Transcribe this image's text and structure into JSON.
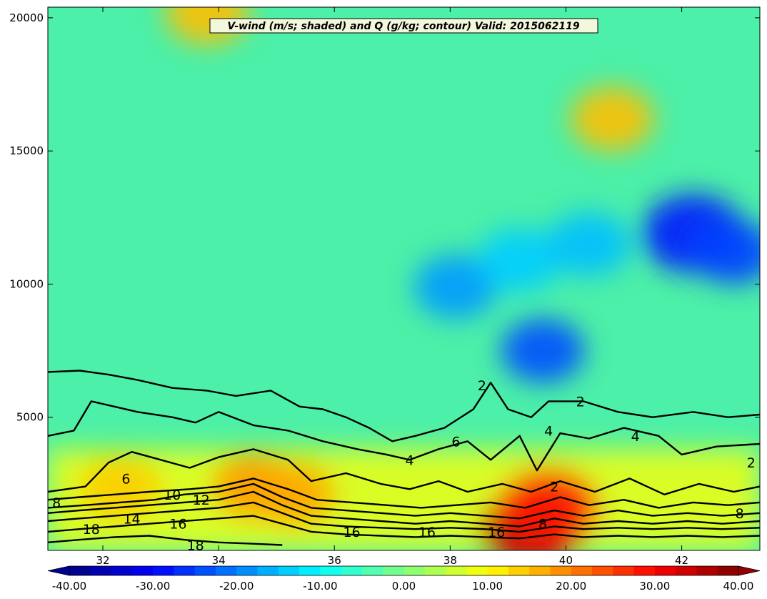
{
  "chart_data": {
    "type": "heatmap",
    "title": "V-wind (m/s; shaded) and Q (g/kg; contour) Valid: 2015062119",
    "xlabel": "",
    "ylabel": "",
    "xlim": [
      31.05,
      43.35
    ],
    "ylim": [
      0,
      20400
    ],
    "x_ticks": [
      32,
      34,
      36,
      38,
      40,
      42
    ],
    "x_tick_labels": [
      "32",
      "34",
      "36",
      "38",
      "40",
      "42"
    ],
    "y_ticks": [
      5000,
      10000,
      15000,
      20000
    ],
    "y_tick_labels": [
      "5000",
      "10000",
      "15000",
      "20000"
    ],
    "shaded_field": {
      "name": "V-wind",
      "units": "m/s",
      "levels_min": -40.0,
      "levels_max": 40.0,
      "levels_step": 2.5,
      "colormap": "jet",
      "colorbar_ticks": [
        -40,
        -30,
        -20,
        -10,
        0,
        10,
        20,
        30,
        40
      ],
      "colorbar_tick_labels": [
        "-40.00",
        "-30.00",
        "-20.00",
        "-10.00",
        "0.00",
        "10.00",
        "20.00",
        "30.00",
        "40.00"
      ],
      "features": [
        {
          "x": 32.3,
          "y": 2300,
          "value": 14
        },
        {
          "x": 34.6,
          "y": 2400,
          "value": 18
        },
        {
          "x": 35.3,
          "y": 2100,
          "value": 17
        },
        {
          "x": 39.4,
          "y": 800,
          "value": 35
        },
        {
          "x": 39.7,
          "y": 1600,
          "value": 28
        },
        {
          "x": 38.1,
          "y": 9900,
          "value": -18
        },
        {
          "x": 39.2,
          "y": 10900,
          "value": -14
        },
        {
          "x": 39.6,
          "y": 7500,
          "value": -24
        },
        {
          "x": 40.4,
          "y": 11500,
          "value": -15
        },
        {
          "x": 42.2,
          "y": 11900,
          "value": -28
        },
        {
          "x": 42.9,
          "y": 11200,
          "value": -25
        },
        {
          "x": 40.8,
          "y": 16200,
          "value": 15
        },
        {
          "x": 33.8,
          "y": 20200,
          "value": 15
        }
      ]
    },
    "contour_field": {
      "name": "Q",
      "units": "g/kg",
      "levels": [
        2,
        4,
        6,
        8,
        10,
        12,
        14,
        16,
        18
      ],
      "labels": [
        {
          "text": "2",
          "x": 38.55,
          "y": 6200
        },
        {
          "text": "2",
          "x": 40.25,
          "y": 5600
        },
        {
          "text": "2",
          "x": 39.8,
          "y": 2400
        },
        {
          "text": "2",
          "x": 43.2,
          "y": 3300
        },
        {
          "text": "4",
          "x": 37.3,
          "y": 3400
        },
        {
          "text": "4",
          "x": 39.7,
          "y": 4500
        },
        {
          "text": "4",
          "x": 41.2,
          "y": 4300
        },
        {
          "text": "6",
          "x": 32.4,
          "y": 2700
        },
        {
          "text": "6",
          "x": 38.1,
          "y": 4100
        },
        {
          "text": "8",
          "x": 31.2,
          "y": 1800
        },
        {
          "text": "8",
          "x": 39.6,
          "y": 1000
        },
        {
          "text": "8",
          "x": 43.0,
          "y": 1400
        },
        {
          "text": "10",
          "x": 33.2,
          "y": 2100
        },
        {
          "text": "12",
          "x": 33.7,
          "y": 1900
        },
        {
          "text": "14",
          "x": 32.5,
          "y": 1200
        },
        {
          "text": "16",
          "x": 33.3,
          "y": 1000
        },
        {
          "text": "16",
          "x": 36.3,
          "y": 700
        },
        {
          "text": "16",
          "x": 37.6,
          "y": 700
        },
        {
          "text": "16",
          "x": 38.8,
          "y": 700
        },
        {
          "text": "18",
          "x": 31.8,
          "y": 800
        },
        {
          "text": "18",
          "x": 33.6,
          "y": 200
        }
      ],
      "lines": [
        {
          "level": 2,
          "points": [
            [
              31.05,
              6700
            ],
            [
              31.6,
              6750
            ],
            [
              32.1,
              6600
            ],
            [
              32.6,
              6400
            ],
            [
              33.2,
              6100
            ],
            [
              33.8,
              6000
            ],
            [
              34.3,
              5800
            ],
            [
              34.9,
              6000
            ],
            [
              35.4,
              5400
            ],
            [
              35.8,
              5300
            ],
            [
              36.2,
              5000
            ],
            [
              36.6,
              4600
            ],
            [
              37.0,
              4100
            ],
            [
              37.4,
              4300
            ],
            [
              37.9,
              4600
            ],
            [
              38.4,
              5300
            ],
            [
              38.7,
              6300
            ],
            [
              39.0,
              5300
            ],
            [
              39.4,
              5000
            ],
            [
              39.7,
              5600
            ],
            [
              40.3,
              5600
            ],
            [
              40.9,
              5200
            ],
            [
              41.5,
              5000
            ],
            [
              42.2,
              5200
            ],
            [
              42.8,
              5000
            ],
            [
              43.35,
              5100
            ]
          ]
        },
        {
          "level": 4,
          "points": [
            [
              31.05,
              4300
            ],
            [
              31.5,
              4500
            ],
            [
              31.8,
              5600
            ],
            [
              32.2,
              5400
            ],
            [
              32.6,
              5200
            ],
            [
              33.2,
              5000
            ],
            [
              33.6,
              4800
            ],
            [
              34.0,
              5200
            ],
            [
              34.6,
              4700
            ],
            [
              35.2,
              4500
            ],
            [
              35.8,
              4100
            ],
            [
              36.4,
              3800
            ],
            [
              36.9,
              3600
            ],
            [
              37.3,
              3400
            ],
            [
              37.8,
              3800
            ],
            [
              38.3,
              4100
            ],
            [
              38.7,
              3400
            ],
            [
              39.2,
              4300
            ],
            [
              39.5,
              3000
            ],
            [
              39.9,
              4400
            ],
            [
              40.4,
              4200
            ],
            [
              41.0,
              4600
            ],
            [
              41.6,
              4300
            ],
            [
              42.0,
              3600
            ],
            [
              42.6,
              3900
            ],
            [
              43.35,
              4000
            ]
          ]
        },
        {
          "level": 6,
          "points": [
            [
              31.05,
              2200
            ],
            [
              31.7,
              2400
            ],
            [
              32.1,
              3300
            ],
            [
              32.5,
              3700
            ],
            [
              33.0,
              3400
            ],
            [
              33.5,
              3100
            ],
            [
              34.0,
              3500
            ],
            [
              34.6,
              3800
            ],
            [
              35.2,
              3400
            ],
            [
              35.6,
              2600
            ],
            [
              36.2,
              2900
            ],
            [
              36.8,
              2500
            ],
            [
              37.3,
              2300
            ],
            [
              37.8,
              2600
            ],
            [
              38.3,
              2200
            ],
            [
              38.9,
              2500
            ],
            [
              39.4,
              2200
            ],
            [
              39.9,
              2600
            ],
            [
              40.5,
              2200
            ],
            [
              41.1,
              2700
            ],
            [
              41.7,
              2100
            ],
            [
              42.3,
              2500
            ],
            [
              42.9,
              2200
            ],
            [
              43.35,
              2400
            ]
          ]
        },
        {
          "level": 8,
          "points": [
            [
              31.05,
              1900
            ],
            [
              31.6,
              2000
            ],
            [
              32.2,
              2100
            ],
            [
              32.8,
              2200
            ],
            [
              33.5,
              2300
            ],
            [
              34.0,
              2400
            ],
            [
              34.6,
              2700
            ],
            [
              35.2,
              2300
            ],
            [
              35.7,
              1900
            ],
            [
              36.3,
              1800
            ],
            [
              36.9,
              1700
            ],
            [
              37.5,
              1600
            ],
            [
              38.1,
              1700
            ],
            [
              38.7,
              1800
            ],
            [
              39.3,
              1600
            ],
            [
              39.9,
              2000
            ],
            [
              40.4,
              1700
            ],
            [
              41.0,
              1900
            ],
            [
              41.6,
              1600
            ],
            [
              42.2,
              1800
            ],
            [
              42.8,
              1700
            ],
            [
              43.35,
              1800
            ]
          ]
        },
        {
          "level": 10,
          "points": [
            [
              31.05,
              1600
            ],
            [
              31.7,
              1700
            ],
            [
              32.3,
              1800
            ],
            [
              32.9,
              1900
            ],
            [
              33.4,
              2100
            ],
            [
              34.0,
              2200
            ],
            [
              34.6,
              2500
            ],
            [
              35.1,
              2000
            ],
            [
              35.6,
              1600
            ],
            [
              36.2,
              1500
            ],
            [
              36.8,
              1400
            ],
            [
              37.4,
              1300
            ],
            [
              38.0,
              1400
            ],
            [
              38.6,
              1300
            ],
            [
              39.2,
              1200
            ],
            [
              39.8,
              1500
            ],
            [
              40.3,
              1300
            ],
            [
              40.9,
              1500
            ],
            [
              41.5,
              1300
            ],
            [
              42.1,
              1400
            ],
            [
              42.7,
              1300
            ],
            [
              43.35,
              1400
            ]
          ]
        },
        {
          "level": 12,
          "points": [
            [
              31.05,
              1400
            ],
            [
              31.6,
              1500
            ],
            [
              32.2,
              1600
            ],
            [
              32.8,
              1700
            ],
            [
              33.4,
              1800
            ],
            [
              34.0,
              1900
            ],
            [
              34.6,
              2200
            ],
            [
              35.1,
              1700
            ],
            [
              35.6,
              1300
            ],
            [
              36.2,
              1200
            ],
            [
              36.8,
              1100
            ],
            [
              37.4,
              1000
            ],
            [
              38.0,
              1100
            ],
            [
              38.6,
              1000
            ],
            [
              39.2,
              900
            ],
            [
              39.8,
              1200
            ],
            [
              40.3,
              1000
            ],
            [
              40.9,
              1100
            ],
            [
              41.5,
              1000
            ],
            [
              42.1,
              1100
            ],
            [
              42.7,
              1000
            ],
            [
              43.35,
              1100
            ]
          ]
        },
        {
          "level": 14,
          "points": [
            [
              31.05,
              1100
            ],
            [
              31.6,
              1200
            ],
            [
              32.2,
              1300
            ],
            [
              32.8,
              1400
            ],
            [
              33.4,
              1500
            ],
            [
              34.0,
              1600
            ],
            [
              34.6,
              1800
            ],
            [
              35.1,
              1400
            ],
            [
              35.6,
              1000
            ],
            [
              36.2,
              900
            ],
            [
              36.8,
              850
            ],
            [
              37.4,
              800
            ],
            [
              38.0,
              850
            ],
            [
              38.6,
              800
            ],
            [
              39.2,
              700
            ],
            [
              39.8,
              900
            ],
            [
              40.3,
              800
            ],
            [
              40.9,
              850
            ],
            [
              41.5,
              800
            ],
            [
              42.1,
              850
            ],
            [
              42.7,
              800
            ],
            [
              43.35,
              850
            ]
          ]
        },
        {
          "level": 16,
          "points": [
            [
              31.05,
              700
            ],
            [
              31.6,
              800
            ],
            [
              32.2,
              900
            ],
            [
              32.8,
              1000
            ],
            [
              33.4,
              1100
            ],
            [
              34.0,
              1200
            ],
            [
              34.6,
              1300
            ],
            [
              35.1,
              1000
            ],
            [
              35.6,
              700
            ],
            [
              36.2,
              600
            ],
            [
              36.8,
              550
            ],
            [
              37.4,
              500
            ],
            [
              38.0,
              550
            ],
            [
              38.6,
              500
            ],
            [
              39.2,
              450
            ],
            [
              39.8,
              600
            ],
            [
              40.3,
              500
            ],
            [
              40.9,
              550
            ],
            [
              41.5,
              500
            ],
            [
              42.1,
              550
            ],
            [
              42.7,
              500
            ],
            [
              43.35,
              550
            ]
          ]
        },
        {
          "level": 18,
          "points": [
            [
              31.05,
              300
            ],
            [
              31.6,
              400
            ],
            [
              32.2,
              500
            ],
            [
              32.8,
              550
            ],
            [
              33.4,
              400
            ],
            [
              34.0,
              300
            ],
            [
              34.6,
              250
            ],
            [
              35.1,
              200
            ]
          ]
        }
      ],
      "color": "#000000"
    },
    "grid": false
  }
}
